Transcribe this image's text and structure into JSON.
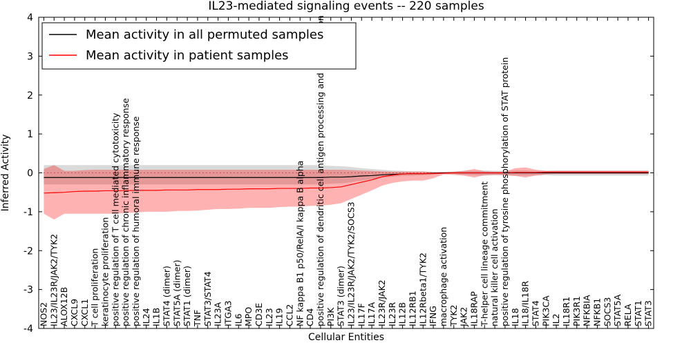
{
  "chart_data": {
    "type": "line",
    "title": "IL23-mediated signaling events -- 220 samples",
    "xlabel": "Cellular Entities",
    "ylabel": "Inferred Activity",
    "ylim": [
      -4,
      4
    ],
    "yticks": [
      -4,
      -3,
      -2,
      -1,
      0,
      1,
      2,
      3,
      4
    ],
    "legend_position": "top-left",
    "categories": [
      "NOS2",
      "IL23/IL23R/JAK2/TYK2",
      "ALOX12B",
      "CXCL9",
      "CXCL1",
      "T cell proliferation",
      "keratinocyte proliferation",
      "positive regulation of T cell mediated cytotoxicity",
      "positive regulation of chronic inflammatory response",
      "positive regulation of humoral immune response",
      "IL24",
      "IL1B",
      "STAT4 (dimer)",
      "STAT5A (dimer)",
      "STAT1 (dimer)",
      "TNF",
      "STAT3/STAT4",
      "IL23A",
      "ITGA3",
      "IL6",
      "MPO",
      "CD3E",
      "IL23",
      "IL19",
      "CCL2",
      "NF kappa B1 p50/RelA/I kappa B alpha",
      "CD4",
      "positive regulation of dendritic cell antigen processing and presentation",
      "PI3K",
      "STAT3 (dimer)",
      "IL23/IL23R/JAK2/TYK2/SOCS3",
      "IL17F",
      "IL17A",
      "IL23R/JAK2",
      "IL23R",
      "IL12B",
      "IL12RB1",
      "IL12Rbeta1/TYK2",
      "IFNG",
      "macrophage activation",
      "TYK2",
      "JAK2",
      "IL18RAP",
      "T-helper cell lineage commitment",
      "natural killer cell activation",
      "positive regulation of tyrosine phosphorylation of STAT protein",
      "IL18",
      "IL18/IL18R",
      "STAT4",
      "PIK3CA",
      "IL2",
      "IL18R1",
      "PIK3R1",
      "NFKBIA",
      "NFKB1",
      "SOCS3",
      "STAT5A",
      "RELA",
      "STAT1",
      "STAT3"
    ],
    "series": [
      {
        "name": "Mean activity in all permuted samples",
        "color": "#000000",
        "values": [
          -0.12,
          -0.12,
          -0.12,
          -0.12,
          -0.12,
          -0.12,
          -0.12,
          -0.12,
          -0.12,
          -0.12,
          -0.12,
          -0.12,
          -0.12,
          -0.12,
          -0.12,
          -0.12,
          -0.12,
          -0.12,
          -0.12,
          -0.12,
          -0.12,
          -0.12,
          -0.12,
          -0.12,
          -0.12,
          -0.12,
          -0.12,
          -0.12,
          -0.11,
          -0.11,
          -0.1,
          -0.08,
          -0.07,
          -0.05,
          -0.04,
          -0.03,
          -0.02,
          -0.02,
          -0.01,
          0.0,
          0.0,
          0.0,
          0.0,
          0.0,
          0.0,
          0.0,
          0.0,
          0.0,
          0.0,
          0.0,
          0.0,
          0.0,
          0.0,
          0.0,
          0.0,
          0.0,
          0.0,
          0.0,
          0.0,
          0.0
        ],
        "lower": [
          -0.3,
          -0.3,
          -0.3,
          -0.3,
          -0.3,
          -0.3,
          -0.3,
          -0.3,
          -0.3,
          -0.3,
          -0.3,
          -0.3,
          -0.3,
          -0.3,
          -0.3,
          -0.3,
          -0.3,
          -0.3,
          -0.3,
          -0.3,
          -0.3,
          -0.3,
          -0.3,
          -0.3,
          -0.3,
          -0.3,
          -0.3,
          -0.3,
          -0.28,
          -0.27,
          -0.24,
          -0.2,
          -0.16,
          -0.12,
          -0.1,
          -0.08,
          -0.07,
          -0.06,
          -0.04,
          -0.02,
          -0.03,
          -0.05,
          -0.06,
          -0.07,
          -0.06,
          -0.06,
          -0.07,
          -0.07,
          -0.06,
          -0.06,
          -0.07,
          -0.07,
          -0.07,
          -0.07,
          -0.07,
          -0.07,
          -0.07,
          -0.07,
          -0.07,
          -0.07
        ],
        "upper": [
          0.2,
          0.2,
          0.2,
          0.2,
          0.2,
          0.2,
          0.2,
          0.2,
          0.2,
          0.2,
          0.2,
          0.2,
          0.2,
          0.2,
          0.2,
          0.2,
          0.2,
          0.2,
          0.2,
          0.2,
          0.2,
          0.2,
          0.2,
          0.2,
          0.2,
          0.2,
          0.2,
          0.2,
          0.18,
          0.17,
          0.15,
          0.12,
          0.1,
          0.08,
          0.06,
          0.05,
          0.04,
          0.04,
          0.02,
          0.01,
          0.03,
          0.05,
          0.05,
          0.06,
          0.05,
          0.05,
          0.06,
          0.06,
          0.05,
          0.05,
          0.06,
          0.06,
          0.06,
          0.06,
          0.06,
          0.06,
          0.06,
          0.06,
          0.06,
          0.06
        ]
      },
      {
        "name": "Mean activity in patient samples",
        "color": "#ff0000",
        "values": [
          -0.52,
          -0.51,
          -0.5,
          -0.48,
          -0.47,
          -0.47,
          -0.46,
          -0.46,
          -0.46,
          -0.45,
          -0.45,
          -0.45,
          -0.44,
          -0.44,
          -0.44,
          -0.43,
          -0.43,
          -0.43,
          -0.42,
          -0.42,
          -0.41,
          -0.41,
          -0.41,
          -0.4,
          -0.4,
          -0.4,
          -0.39,
          -0.39,
          -0.38,
          -0.36,
          -0.3,
          -0.24,
          -0.18,
          -0.1,
          -0.06,
          -0.03,
          -0.02,
          -0.02,
          -0.02,
          -0.01,
          0.0,
          0.0,
          0.0,
          0.0,
          0.0,
          0.0,
          0.01,
          0.01,
          0.01,
          0.02,
          0.02,
          0.02,
          0.02,
          0.02,
          0.02,
          0.02,
          0.02,
          0.02,
          0.02,
          0.02
        ],
        "lower": [
          -1.05,
          -1.2,
          -1.05,
          -1.05,
          -1.05,
          -1.05,
          -1.05,
          -1.05,
          -1.03,
          -1.02,
          -1.0,
          -1.0,
          -1.0,
          -0.98,
          -0.98,
          -0.97,
          -0.95,
          -0.93,
          -0.93,
          -0.92,
          -0.9,
          -0.9,
          -0.9,
          -0.88,
          -0.87,
          -0.87,
          -0.85,
          -0.84,
          -0.82,
          -0.78,
          -0.67,
          -0.56,
          -0.45,
          -0.33,
          -0.26,
          -0.22,
          -0.2,
          -0.2,
          -0.14,
          -0.04,
          -0.05,
          -0.07,
          -0.12,
          -0.06,
          -0.05,
          -0.06,
          -0.08,
          -0.12,
          -0.07,
          -0.04,
          -0.03,
          -0.03,
          -0.03,
          -0.03,
          -0.03,
          -0.03,
          -0.03,
          -0.03,
          -0.03,
          -0.03
        ],
        "upper": [
          0.1,
          0.2,
          0.05,
          0.05,
          0.07,
          0.08,
          0.08,
          0.08,
          0.08,
          0.08,
          0.08,
          0.08,
          0.08,
          0.08,
          0.08,
          0.08,
          0.08,
          0.08,
          0.08,
          0.08,
          0.08,
          0.08,
          0.08,
          0.08,
          0.08,
          0.08,
          0.08,
          0.08,
          0.08,
          0.08,
          0.07,
          0.06,
          0.05,
          0.04,
          0.03,
          0.03,
          0.03,
          0.03,
          0.02,
          0.02,
          0.03,
          0.05,
          0.1,
          0.04,
          0.03,
          0.03,
          0.12,
          0.14,
          0.08,
          0.05,
          0.05,
          0.05,
          0.05,
          0.05,
          0.05,
          0.05,
          0.05,
          0.05,
          0.05,
          0.05
        ]
      }
    ],
    "reference_line": {
      "style": "dotted",
      "color": "#cc0000",
      "y": 0.0
    }
  }
}
